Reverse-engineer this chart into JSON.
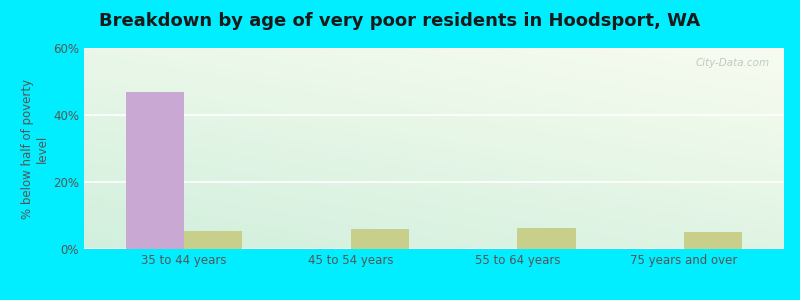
{
  "title": "Breakdown by age of very poor residents in Hoodsport, WA",
  "ylabel": "% below half of poverty\nlevel",
  "categories": [
    "35 to 44 years",
    "45 to 54 years",
    "55 to 64 years",
    "75 years and over"
  ],
  "hoodsport_values": [
    47.0,
    0.0,
    0.0,
    0.0
  ],
  "washington_values": [
    5.5,
    6.0,
    6.2,
    5.0
  ],
  "hoodsport_color": "#c9a8d4",
  "washington_color": "#c8cf8a",
  "background_outer": "#00eeff",
  "ylim": [
    0,
    60
  ],
  "yticks": [
    0,
    20,
    40,
    60
  ],
  "bar_width": 0.35,
  "title_fontsize": 13,
  "axis_fontsize": 8.5,
  "tick_fontsize": 8.5,
  "legend_fontsize": 9,
  "watermark_text": "City-Data.com",
  "gradient_top_left": "#c8ecd8",
  "gradient_bottom_right": "#f5f8ea"
}
